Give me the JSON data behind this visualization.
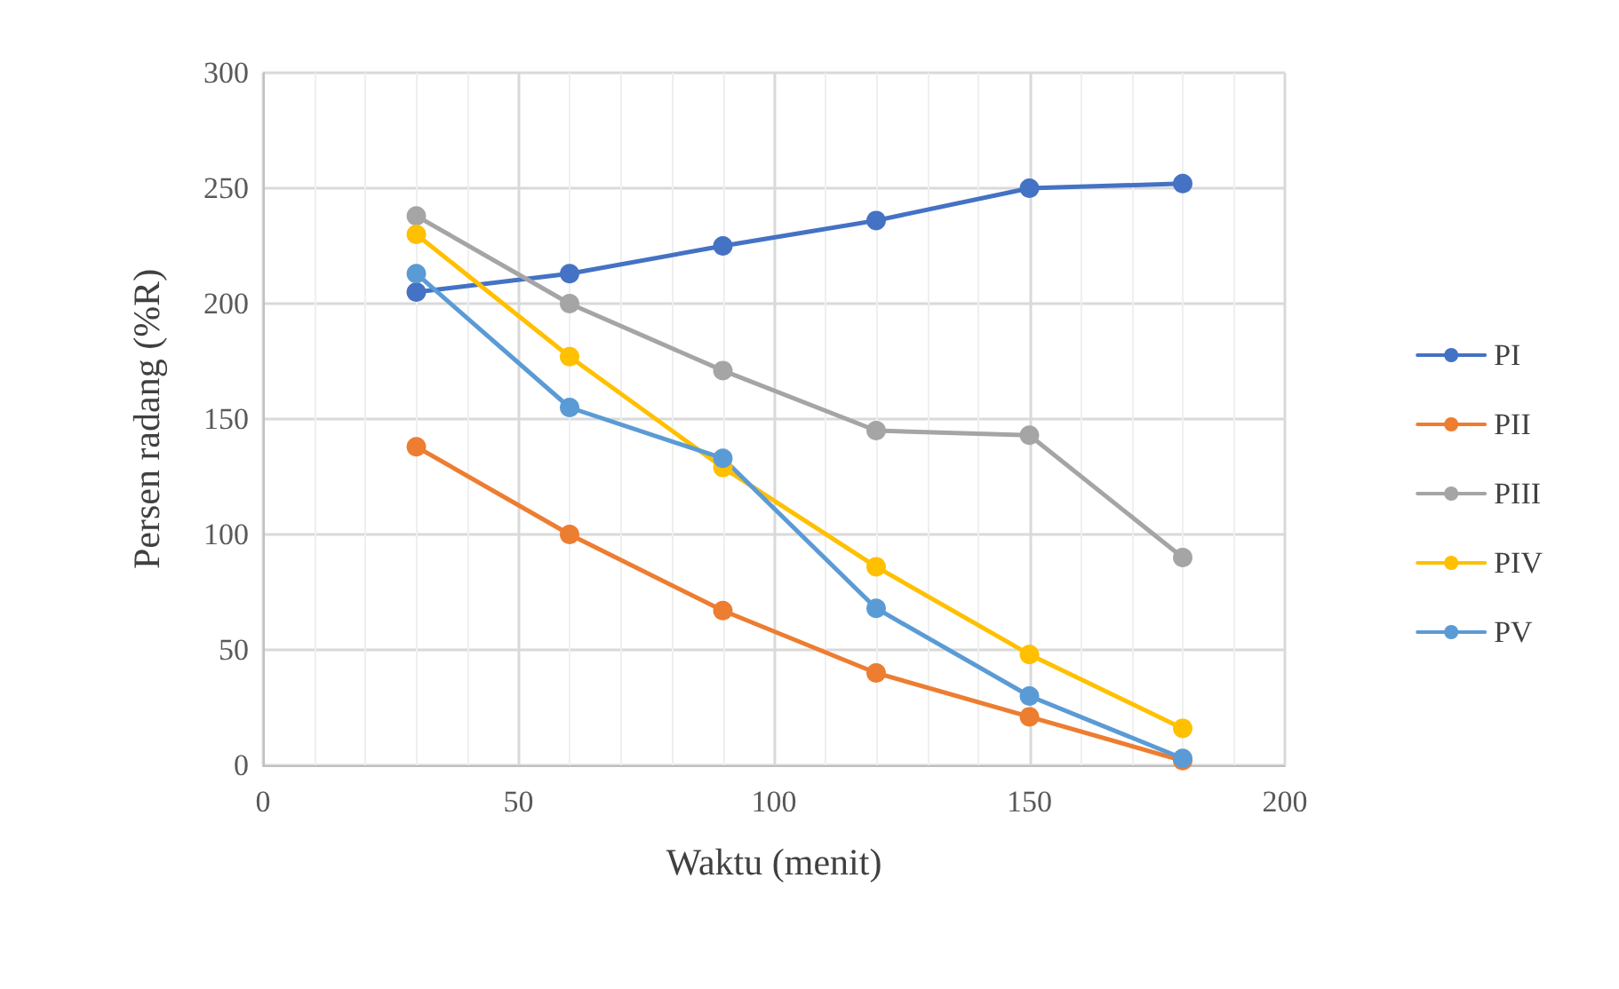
{
  "chart_data": {
    "type": "line",
    "xlabel": "Waktu (menit)",
    "ylabel": "Persen radang (%R)",
    "x": [
      30,
      60,
      90,
      120,
      150,
      180
    ],
    "series": [
      {
        "name": "PI",
        "color": "#4472c4",
        "values": [
          205,
          213,
          225,
          236,
          250,
          252
        ]
      },
      {
        "name": "PII",
        "color": "#ed7d31",
        "values": [
          138,
          100,
          67,
          40,
          21,
          2
        ]
      },
      {
        "name": "PIII",
        "color": "#a5a5a5",
        "values": [
          238,
          200,
          171,
          145,
          143,
          90
        ]
      },
      {
        "name": "PIV",
        "color": "#ffc000",
        "values": [
          230,
          177,
          129,
          86,
          48,
          16
        ]
      },
      {
        "name": "PV",
        "color": "#5b9bd5",
        "values": [
          213,
          155,
          133,
          68,
          30,
          3
        ]
      }
    ],
    "xlim": [
      0,
      200
    ],
    "xticks": [
      0,
      50,
      100,
      150,
      200
    ],
    "ylim": [
      0,
      300
    ],
    "yticks": [
      0,
      50,
      100,
      150,
      200,
      250,
      300
    ],
    "grid": true,
    "legend": "right",
    "marker": "circle",
    "line_style": "solid"
  }
}
